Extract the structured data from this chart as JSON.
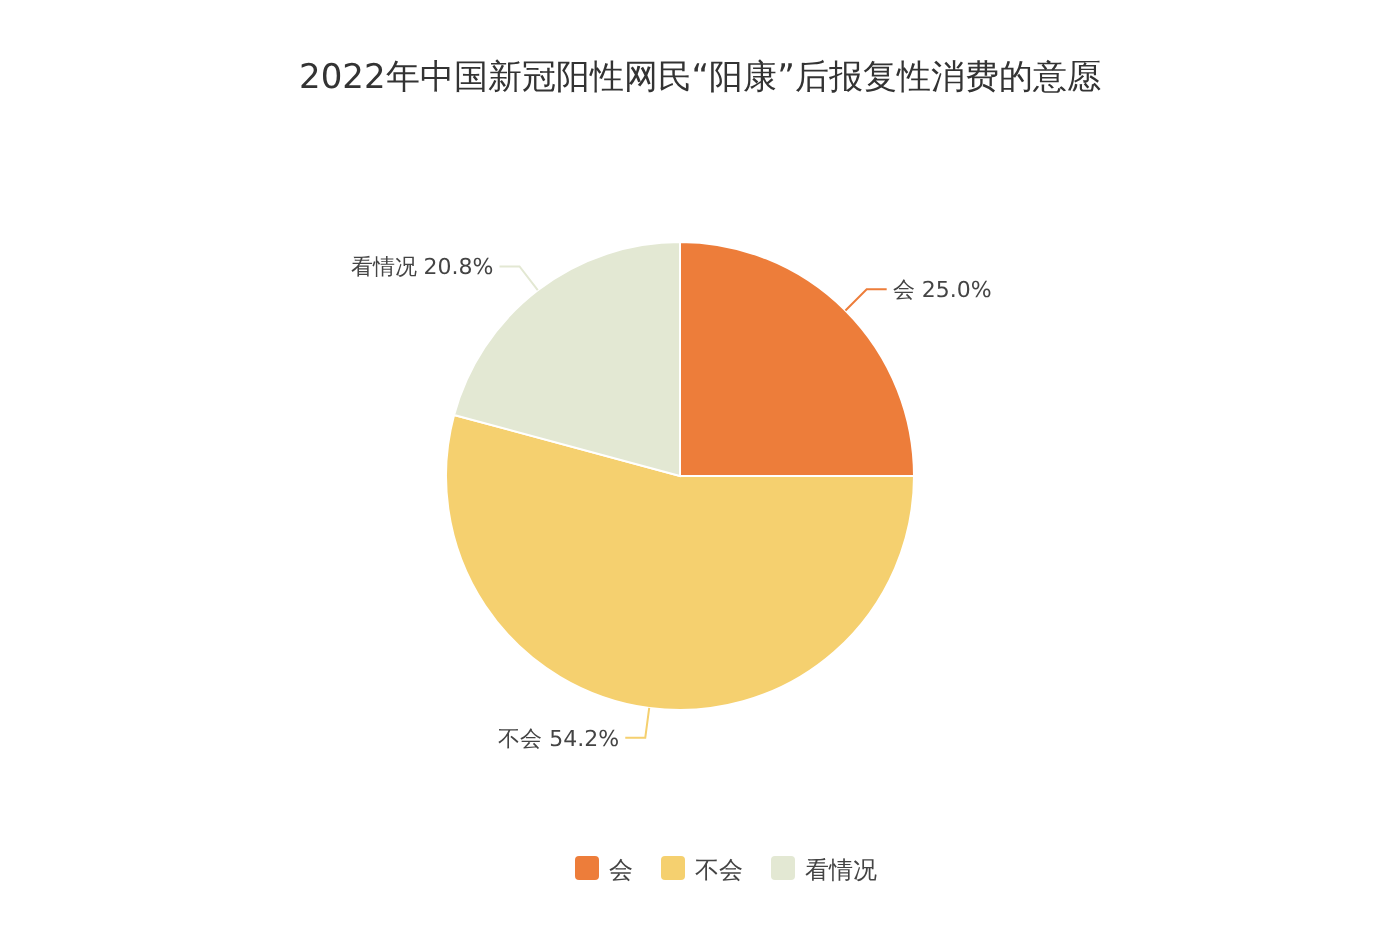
{
  "chart_data": {
    "type": "pie",
    "title": "2022年中国新冠阳性网民“阳康”后报复性消费的意愿",
    "categories": [
      "会",
      "不会",
      "看情况"
    ],
    "values": [
      25.0,
      54.2,
      20.8
    ],
    "value_labels": [
      "25.0%",
      "54.2%",
      "20.8%"
    ],
    "colors": [
      "#ed7d3a",
      "#f5d06f",
      "#e3e8d3"
    ],
    "legend": "bottom"
  }
}
